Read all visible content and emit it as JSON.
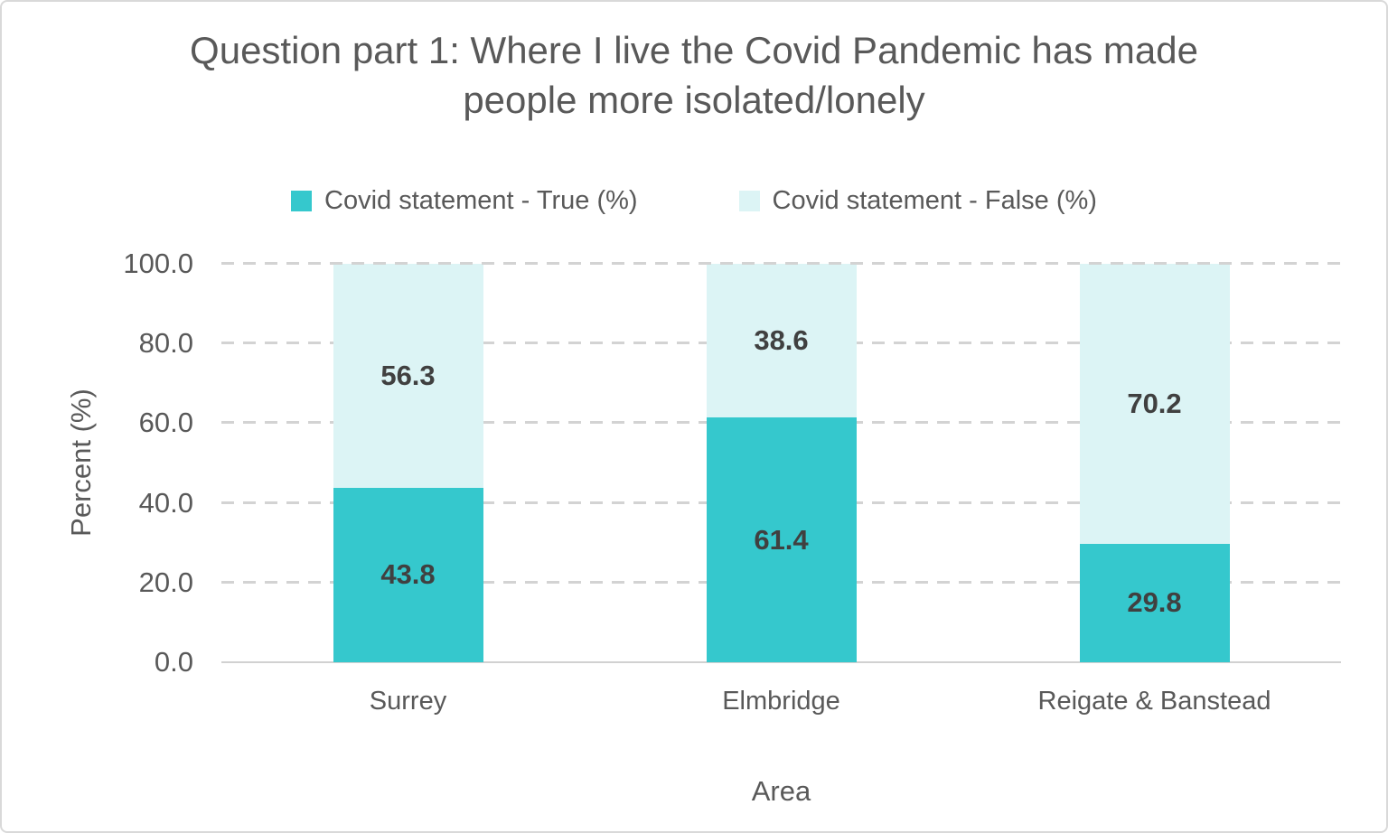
{
  "chart_data": {
    "type": "bar",
    "stacked": true,
    "title": "Question part 1: Where I live the Covid Pandemic has made people more isolated/lonely",
    "categories": [
      "Surrey",
      "Elmbridge",
      "Reigate & Banstead"
    ],
    "series": [
      {
        "name": "Covid statement - True (%)",
        "color": "#35c8cd",
        "values": [
          43.8,
          61.4,
          29.8
        ]
      },
      {
        "name": "Covid statement - False (%)",
        "color": "#dcf4f5",
        "values": [
          56.3,
          38.6,
          70.2
        ]
      }
    ],
    "xlabel": "Area",
    "ylabel": "Percent (%)",
    "ylim": [
      0,
      100
    ],
    "yticks": [
      "100.0",
      "80.0",
      "60.0",
      "40.0",
      "20.0",
      "0.0"
    ],
    "grid": "horizontal dashed",
    "legend_position": "top-center"
  },
  "colors": {
    "title_text": "#595959",
    "axis_text": "#595959",
    "data_label_text": "#404040",
    "gridline": "#d3d3d3",
    "canvas_border": "#d9d9d9"
  }
}
